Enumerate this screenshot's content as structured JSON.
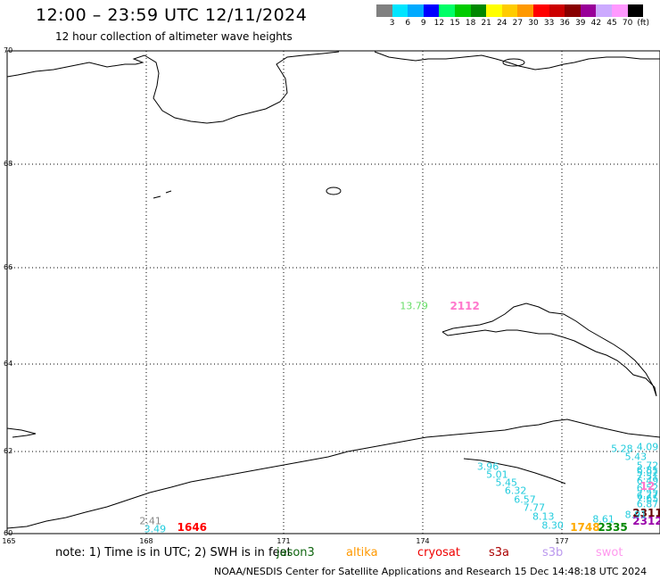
{
  "header": {
    "title": "12:00 – 23:59 UTC 12/11/2024",
    "subtitle": "12 hour collection of altimeter wave heights"
  },
  "colorbar": {
    "colors": [
      "#808080",
      "#00e5ff",
      "#00aaff",
      "#0000ff",
      "#00ff66",
      "#00cc00",
      "#008800",
      "#ffff00",
      "#ffcc00",
      "#ff9900",
      "#ff0000",
      "#cc0000",
      "#880000",
      "#990099",
      "#ccaaff",
      "#ff99ff",
      "#000000"
    ],
    "labels": [
      "3",
      "6",
      "9",
      "12",
      "15",
      "18",
      "21",
      "24",
      "27",
      "30",
      "33",
      "36",
      "39",
      "42",
      "45",
      "70",
      "(ft)"
    ]
  },
  "map": {
    "latitudes": [
      "70",
      "68",
      "66",
      "64",
      "62",
      "60"
    ],
    "longitudes": [
      "165",
      "168",
      "171",
      "174",
      "177"
    ],
    "measurements": [
      {
        "text": "13.79",
        "color": "#66dd66",
        "lon": 173.8,
        "lat": 65.2
      },
      {
        "text": "2112",
        "color": "#ff77cc",
        "lon": 174.9,
        "lat": 65.2
      },
      {
        "text": "2.41",
        "color": "#888888",
        "lon": 168.1,
        "lat": 60.3
      },
      {
        "text": "3.49",
        "color": "#22ccdd",
        "lon": 168.2,
        "lat": 60.1
      },
      {
        "text": "1646",
        "color": "#ff0000",
        "lon": 169.0,
        "lat": 60.15
      },
      {
        "text": "3.96",
        "color": "#22ccdd",
        "lon": 175.4,
        "lat": 61.62
      },
      {
        "text": "5.01",
        "color": "#22ccdd",
        "lon": 175.6,
        "lat": 61.44
      },
      {
        "text": "5.45",
        "color": "#22ccdd",
        "lon": 175.8,
        "lat": 61.23
      },
      {
        "text": "6.32",
        "color": "#22ccdd",
        "lon": 176.0,
        "lat": 61.05
      },
      {
        "text": "6.57",
        "color": "#22ccdd",
        "lon": 176.2,
        "lat": 60.82
      },
      {
        "text": "7.77",
        "color": "#22ccdd",
        "lon": 176.4,
        "lat": 60.62
      },
      {
        "text": "8.13",
        "color": "#22ccdd",
        "lon": 176.6,
        "lat": 60.42
      },
      {
        "text": "8.30",
        "color": "#22ccdd",
        "lon": 176.8,
        "lat": 60.2
      },
      {
        "text": "5.28",
        "color": "#22ccdd",
        "lon": 178.3,
        "lat": 62.07
      },
      {
        "text": "5.43",
        "color": "#22ccdd",
        "lon": 178.6,
        "lat": 61.88
      },
      {
        "text": "5.72",
        "color": "#22ccdd",
        "lon": 178.9,
        "lat": 61.66
      },
      {
        "text": "5.92",
        "color": "#22ccdd",
        "lon": 179.1,
        "lat": 61.48
      },
      {
        "text": "6.49",
        "color": "#22ccdd",
        "lon": 179.3,
        "lat": 61.28
      },
      {
        "text": "6.52",
        "color": "#22ccdd",
        "lon": 179.4,
        "lat": 61.1
      },
      {
        "text": "7.27",
        "color": "#22ccdd",
        "lon": 179.1,
        "lat": 60.95
      },
      {
        "text": "7.65",
        "color": "#22ccdd",
        "lon": 179.8,
        "lat": 60.85
      },
      {
        "text": "6.77",
        "color": "#22ccdd",
        "lon": 179.6,
        "lat": 60.92
      },
      {
        "text": "6.87",
        "color": "#22ccdd",
        "lon": 179.9,
        "lat": 60.72
      },
      {
        "text": "7.51",
        "color": "#22ccdd",
        "lon": 180.0,
        "lat": 61.4
      },
      {
        "text": "6.81",
        "color": "#22ccdd",
        "lon": 179.9,
        "lat": 61.55
      },
      {
        "text": "4.09",
        "color": "#22ccdd",
        "lon": 180.2,
        "lat": 62.1
      },
      {
        "text": "2311",
        "color": "#660000",
        "lon": 179.65,
        "lat": 60.5
      },
      {
        "text": "2312",
        "color": "#9900aa",
        "lon": 179.2,
        "lat": 60.3
      },
      {
        "text": "2335",
        "color": "#008800",
        "lon": 178.1,
        "lat": 60.15
      },
      {
        "text": "1748",
        "color": "#ffaa00",
        "lon": 177.5,
        "lat": 60.15
      },
      {
        "text": "8.61",
        "color": "#22ccdd",
        "lon": 177.9,
        "lat": 60.35
      },
      {
        "text": "8.91",
        "color": "#22ccdd",
        "lon": 178.6,
        "lat": 60.45
      },
      {
        "text": "12",
        "color": "#ff77cc",
        "lon": 180.1,
        "lat": 61.15
      }
    ]
  },
  "footer": {
    "note": "note: 1) Time is in UTC; 2) SWH is in feet",
    "satellites": [
      {
        "name": "jason3",
        "color": "#116611"
      },
      {
        "name": "altika",
        "color": "#ff9900"
      },
      {
        "name": "cryosat",
        "color": "#ee0000"
      },
      {
        "name": "s3a",
        "color": "#aa0000"
      },
      {
        "name": "s3b",
        "color": "#bb99ee"
      },
      {
        "name": "swot",
        "color": "#ff99ee"
      }
    ],
    "credit": "NOAA/NESDIS Center for Satellite Applications and Research    15 Dec 14:48:18 UTC 2024"
  }
}
